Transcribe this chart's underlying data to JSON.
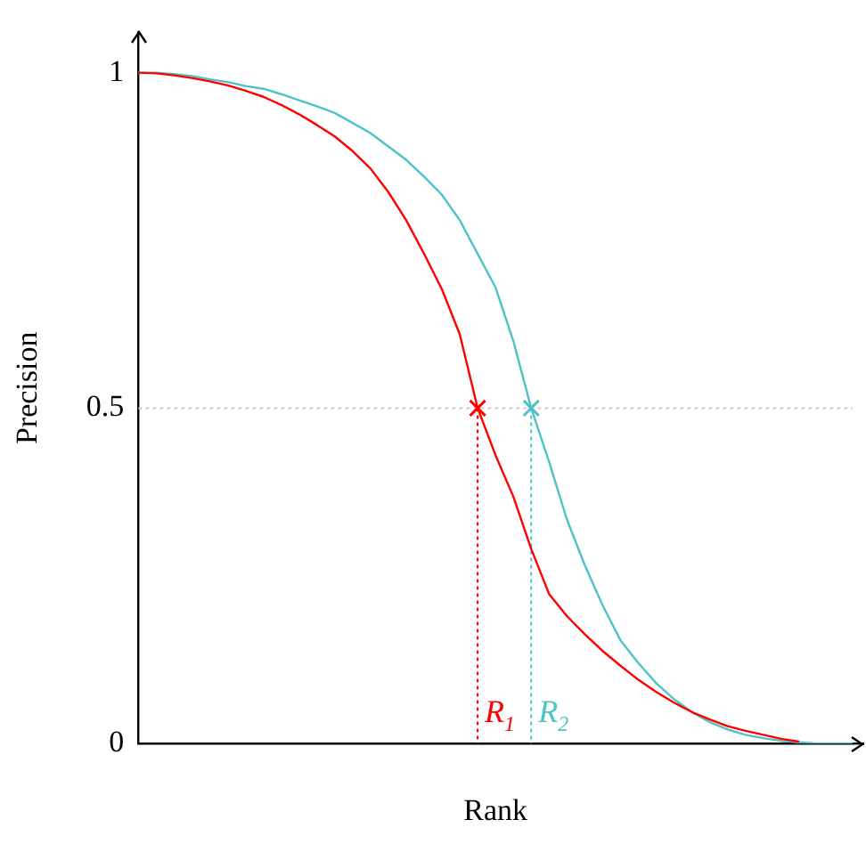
{
  "chart_data": {
    "type": "line",
    "xlabel": "Rank",
    "ylabel": "Precision",
    "categories": [
      null,
      null,
      null,
      null,
      null,
      null,
      null,
      null,
      null,
      null,
      null,
      null,
      null,
      null,
      null,
      null,
      null,
      null,
      null,
      null,
      null,
      null,
      null,
      null,
      null,
      null,
      null,
      null,
      null,
      null,
      null,
      null,
      null,
      null,
      null,
      null,
      null,
      null,
      null,
      null,
      null
    ],
    "ylim": [
      0,
      1.06
    ],
    "yticks": [
      0,
      0.5,
      1
    ],
    "grid": false,
    "legend": false,
    "tick_labels": "y",
    "ref_lines": [
      {
        "axis": "y",
        "value": 0.5,
        "color": "#cccccc",
        "line_style": "dotted"
      }
    ],
    "series": [
      {
        "color": "#ff0000",
        "marker": "none",
        "values": [
          1,
          0.999,
          0.996,
          0.992,
          0.987,
          0.981,
          0.973,
          0.964,
          0.952,
          0.938,
          0.922,
          0.905,
          0.883,
          0.857,
          0.822,
          0.78,
          0.73,
          0.677,
          0.61,
          0.5,
          0.43,
          0.368,
          0.29,
          0.223,
          0.19,
          0.163,
          0.138,
          0.116,
          0.095,
          0.077,
          0.061,
          0.047,
          0.036,
          0.026,
          0.019,
          0.013,
          0.007,
          0.003,
          null,
          null,
          null
        ]
      },
      {
        "color": "#4dc3c8",
        "marker": "none",
        "values": [
          1,
          1,
          0.998,
          0.995,
          0.99,
          0.986,
          0.98,
          0.976,
          0.968,
          0.959,
          0.95,
          0.94,
          0.925,
          0.91,
          0.89,
          0.87,
          0.845,
          0.818,
          0.78,
          0.73,
          0.68,
          0.6,
          0.5,
          0.42,
          0.334,
          0.266,
          0.206,
          0.154,
          0.12,
          0.09,
          0.066,
          0.047,
          0.032,
          0.021,
          0.013,
          0.008,
          0.004,
          0.002,
          0,
          0,
          0
        ]
      },
      {
        "type": "scatter",
        "name": "R$_{1}$",
        "color": "#ff0000",
        "marker": "cross",
        "values": [
          null,
          null,
          null,
          null,
          null,
          null,
          null,
          null,
          null,
          null,
          null,
          null,
          null,
          null,
          null,
          null,
          null,
          null,
          null,
          0.5,
          null,
          null,
          null,
          null,
          null,
          null,
          null,
          null,
          null,
          null,
          null,
          null,
          null,
          null,
          null,
          null,
          null,
          null,
          null,
          null,
          null
        ]
      },
      {
        "type": "scatter",
        "name": "R$_{2}$",
        "color": "#4dc3c8",
        "marker": "cross",
        "values": [
          null,
          null,
          null,
          null,
          null,
          null,
          null,
          null,
          null,
          null,
          null,
          null,
          null,
          null,
          null,
          null,
          null,
          null,
          null,
          null,
          null,
          null,
          0.5,
          null,
          null,
          null,
          null,
          null,
          null,
          null,
          null,
          null,
          null,
          null,
          null,
          null,
          null,
          null,
          null,
          null,
          null
        ]
      }
    ]
  }
}
